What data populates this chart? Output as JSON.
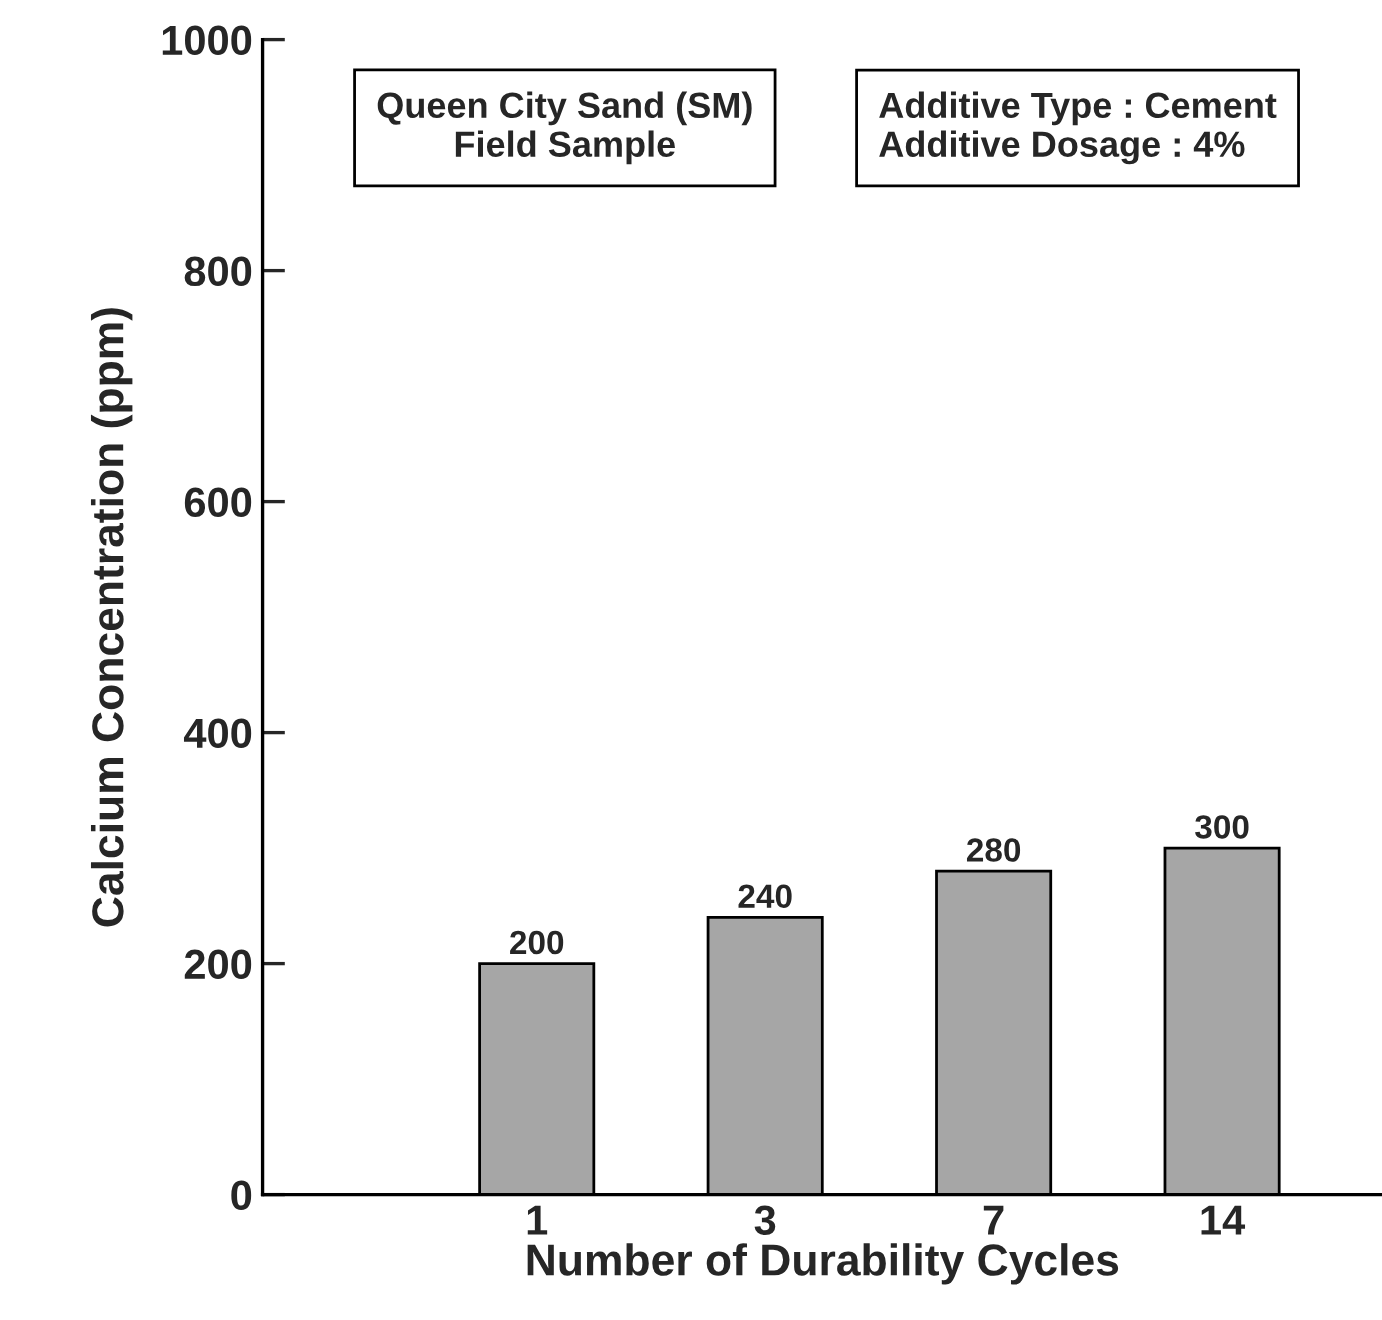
{
  "chart_data": {
    "type": "bar",
    "xlabel": "Number of Durability Cycles",
    "ylabel": "Calcium Concentration (ppm)",
    "categories": [
      "1",
      "3",
      "7",
      "14"
    ],
    "values": [
      200,
      240,
      280,
      300
    ],
    "color": "#a6a6a6",
    "ylim": [
      0,
      1000
    ],
    "yticks": [
      0,
      200,
      400,
      600,
      800,
      1000
    ],
    "data_labels": true,
    "grid": false,
    "annotations": [
      "Queen City Sand (SM)\nField Sample",
      "Additive Type : Cement\nAdditive Dosage : 4%"
    ]
  }
}
